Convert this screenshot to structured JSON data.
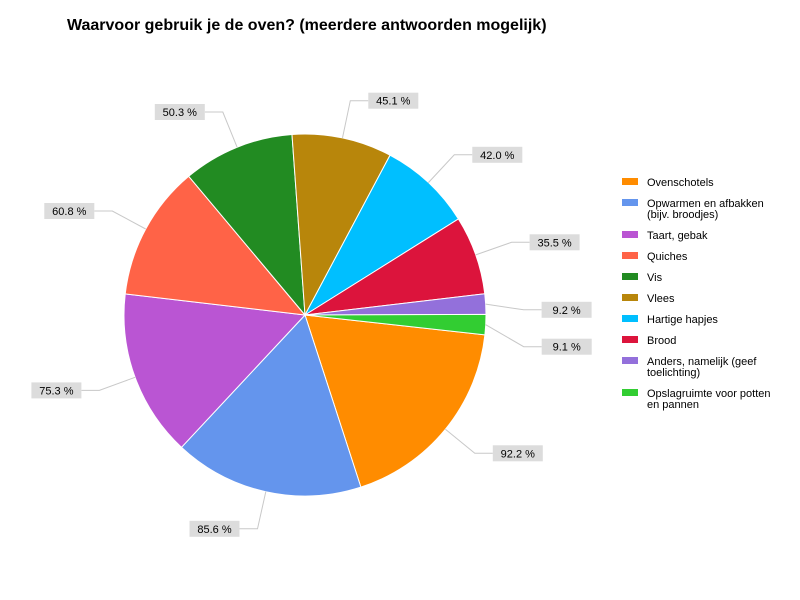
{
  "chart_data": {
    "type": "pie",
    "title": "Waarvoor gebruik je de oven? (meerdere antwoorden mogelijk)",
    "legend_position": "right",
    "slices": [
      {
        "label": "Ovenschotels",
        "value": 92.2,
        "display": "92.2 %",
        "color": "#ff8c00"
      },
      {
        "label": "Opwarmen en afbakken (bijv. broodjes)",
        "value": 85.6,
        "display": "85.6 %",
        "color": "#6495ed"
      },
      {
        "label": "Taart, gebak",
        "value": 75.3,
        "display": "75.3 %",
        "color": "#ba55d3"
      },
      {
        "label": "Quiches",
        "value": 60.8,
        "display": "60.8 %",
        "color": "#ff6347"
      },
      {
        "label": "Vis",
        "value": 50.3,
        "display": "50.3 %",
        "color": "#228b22"
      },
      {
        "label": "Vlees",
        "value": 45.1,
        "display": "45.1 %",
        "color": "#b8860b"
      },
      {
        "label": "Hartige hapjes",
        "value": 42.0,
        "display": "42.0 %",
        "color": "#00bfff"
      },
      {
        "label": "Brood",
        "value": 35.5,
        "display": "35.5 %",
        "color": "#dc143c"
      },
      {
        "label": "Anders, namelijk (geef toelichting)",
        "value": 9.2,
        "display": "9.2 %",
        "color": "#9370db"
      },
      {
        "label": "Opslagruimte voor potten en pannen",
        "value": 9.1,
        "display": "9.1 %",
        "color": "#32cd32"
      }
    ]
  }
}
